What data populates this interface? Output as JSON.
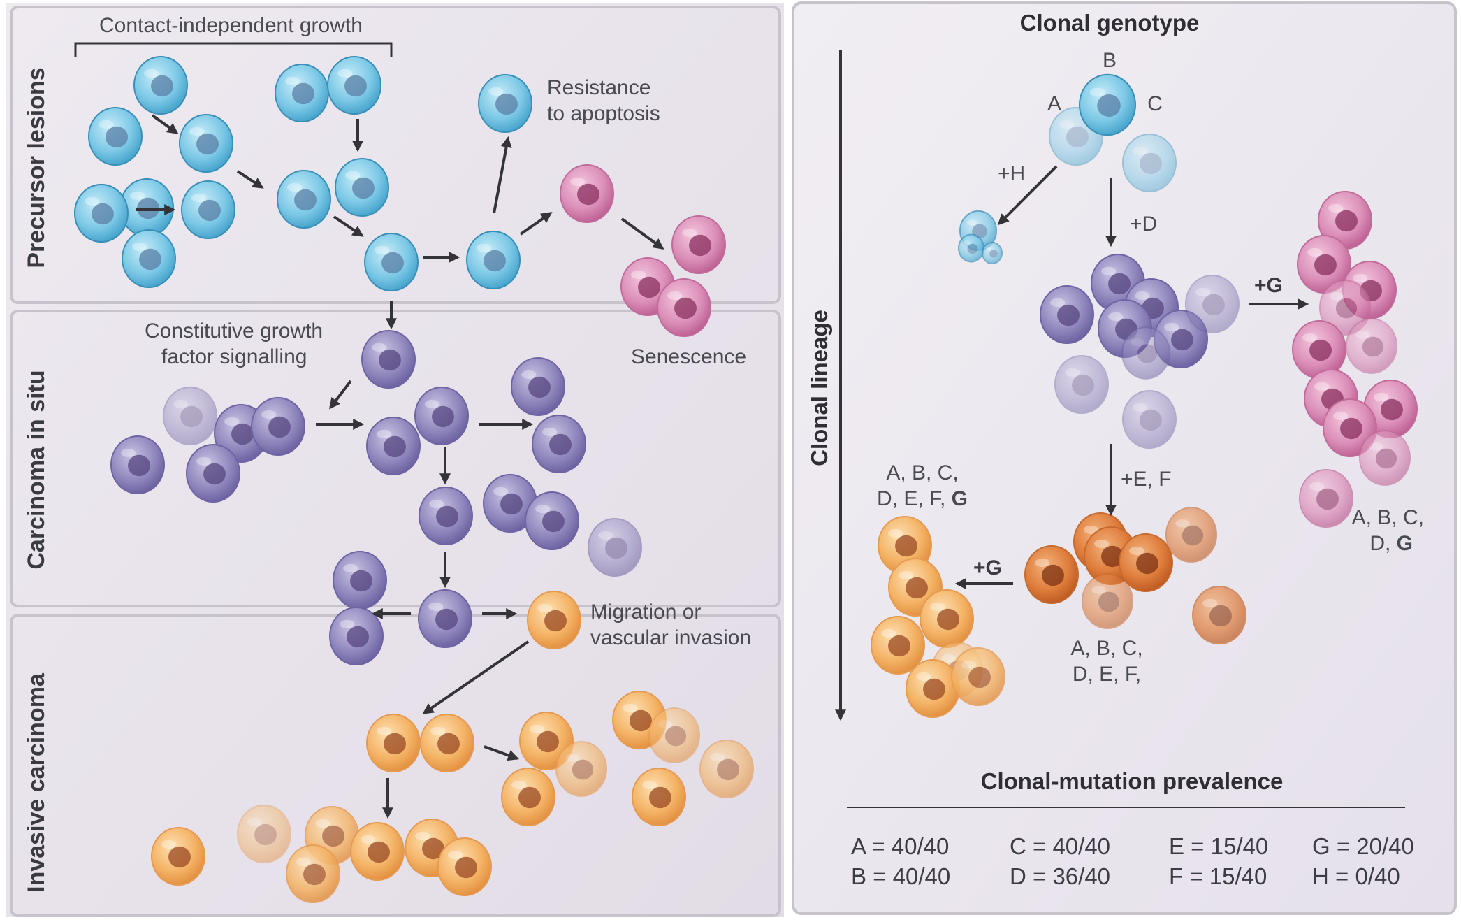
{
  "left": {
    "side_labels": {
      "precursor": "Precursor lesions",
      "cis": "Carcinoma in situ",
      "invasive": "Invasive carcinoma"
    },
    "labels": {
      "contact": "Contact-independent growth",
      "resistance_1": "Resistance",
      "resistance_2": "to apoptosis",
      "senescence": "Senescence",
      "growth_1": "Constitutive growth",
      "growth_2": "factor signalling",
      "migration_1": "Migration or",
      "migration_2": "vascular invasion"
    }
  },
  "right": {
    "title": "Clonal genotype",
    "lineage": "Clonal lineage",
    "clone_labels": {
      "a": "A",
      "b": "B",
      "c": "C"
    },
    "step_labels": {
      "h": "+H",
      "d": "+D",
      "g_right": "+G",
      "ef": "+E, F",
      "g_left": "+G"
    },
    "genotypes": {
      "pink_1": "A, B, C,",
      "pink_2_plain": "D, ",
      "pink_2_bold": "G",
      "orange_1": "A, B, C,",
      "orange_2": "D, E, F,",
      "left_1": "A, B, C,",
      "left_2_plain": "D, E, F, ",
      "left_2_bold": "G"
    },
    "prevalence_title": "Clonal-mutation prevalence",
    "prevalence": [
      [
        "A = 40/40",
        "B = 40/40"
      ],
      [
        "C = 40/40",
        "D = 36/40"
      ],
      [
        "E = 15/40",
        "F = 15/40"
      ],
      [
        "G = 20/40",
        "H = 0/40"
      ]
    ]
  },
  "colors": {
    "blue": "#6cc0e0",
    "purple": "#8a80b8",
    "pink": "#d27fac",
    "orange": "#f2ae5e",
    "dark_orange": "#df7f3e",
    "background": "#e9e4ec"
  }
}
